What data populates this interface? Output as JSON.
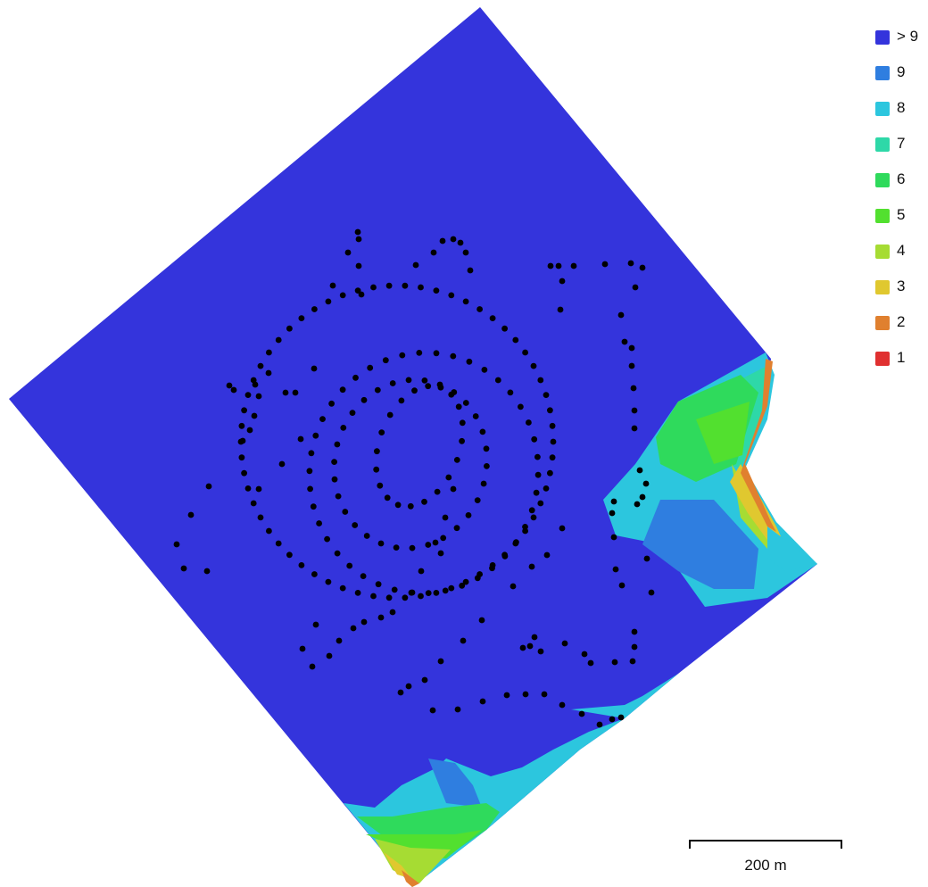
{
  "legend": {
    "items": [
      {
        "label": "> 9",
        "color": "#3434dc"
      },
      {
        "label": "9",
        "color": "#2f7ee0"
      },
      {
        "label": "8",
        "color": "#2cc6de"
      },
      {
        "label": "7",
        "color": "#2ed8a8"
      },
      {
        "label": "6",
        "color": "#2fda5c"
      },
      {
        "label": "5",
        "color": "#52e02f"
      },
      {
        "label": "4",
        "color": "#a6dc33"
      },
      {
        "label": "3",
        "color": "#e0c82f"
      },
      {
        "label": "2",
        "color": "#e0802f"
      },
      {
        "label": "1",
        "color": "#e03030"
      }
    ]
  },
  "scale": {
    "label": "200 m"
  },
  "map": {
    "background_color": "#3434dc",
    "camera_color": "#000000"
  }
}
